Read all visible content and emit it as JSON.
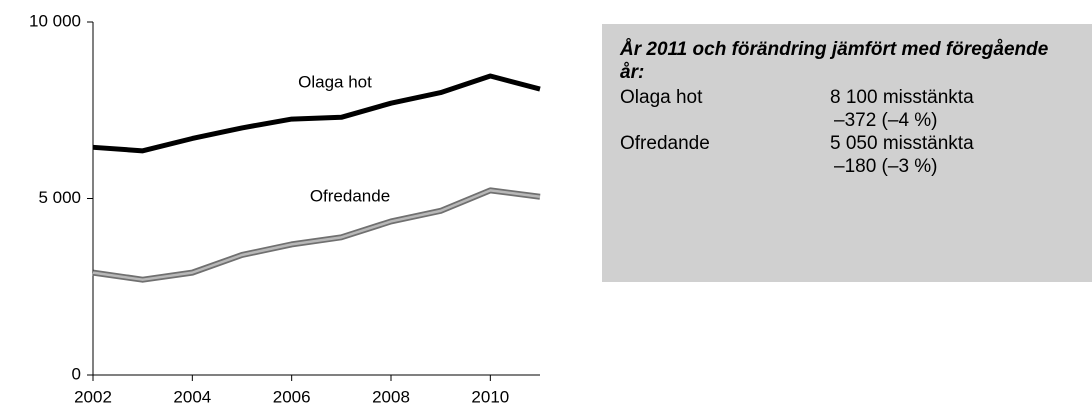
{
  "chart_data": {
    "type": "line",
    "x": [
      2002,
      2003,
      2004,
      2005,
      2006,
      2007,
      2008,
      2009,
      2010,
      2011
    ],
    "series": [
      {
        "name": "Olaga hot",
        "color": "#000000",
        "values": [
          6450,
          6350,
          6700,
          7000,
          7250,
          7300,
          7700,
          8000,
          8470,
          8100
        ]
      },
      {
        "name": "Ofredande",
        "color": "#b8b8b8",
        "values": [
          2900,
          2700,
          2900,
          3400,
          3700,
          3900,
          4350,
          4650,
          5230,
          5050
        ]
      }
    ],
    "xlim": [
      2002,
      2011
    ],
    "xticks": [
      2002,
      2004,
      2006,
      2008,
      2010
    ],
    "ylim": [
      0,
      10000
    ],
    "yticks": [
      0,
      {
        "value": 5000,
        "label": "5 000"
      },
      {
        "value": 10000,
        "label": "10 000"
      }
    ],
    "grid": false
  },
  "info_box": {
    "title": "År 2011 och förändring jämfört med föregående år:",
    "rows": [
      {
        "label": "Olaga hot",
        "lines": [
          "8 100 misstänkta",
          "–372 (–4 %)"
        ]
      },
      {
        "label": "Ofredande",
        "lines": [
          "5 050 misstänkta",
          "–180 (–3 %)"
        ]
      }
    ]
  }
}
